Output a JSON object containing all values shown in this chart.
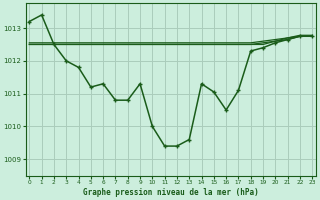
{
  "title": "Graphe pression niveau de la mer (hPa)",
  "background_color": "#cceedd",
  "grid_color": "#aaccbb",
  "line_color": "#1a5c1a",
  "x_ticks": [
    0,
    1,
    2,
    3,
    4,
    5,
    6,
    7,
    8,
    9,
    10,
    11,
    12,
    13,
    14,
    15,
    16,
    17,
    18,
    19,
    20,
    21,
    22,
    23
  ],
  "y_ticks": [
    1009,
    1010,
    1011,
    1012,
    1013
  ],
  "ylim": [
    1008.5,
    1013.75
  ],
  "xlim": [
    -0.3,
    23.3
  ],
  "series_main": [
    1013.2,
    1013.4,
    1012.5,
    1012.0,
    1011.8,
    1011.2,
    1011.3,
    1010.8,
    1010.8,
    1011.3,
    1010.0,
    1009.4,
    1009.4,
    1009.6,
    1011.3,
    1011.05,
    1010.5,
    1011.1,
    1012.3,
    1012.4,
    1012.55,
    1012.65,
    1012.75,
    1012.75
  ],
  "series_flat1": [
    1012.5,
    1012.5,
    1012.5,
    1012.5,
    1012.5,
    1012.5,
    1012.5,
    1012.5,
    1012.5,
    1012.5,
    1012.5,
    1012.5,
    1012.5,
    1012.5,
    1012.5,
    1012.5,
    1012.5,
    1012.5,
    1012.5,
    1012.5,
    1012.6,
    1012.65,
    1012.75,
    1012.75
  ],
  "series_flat2": [
    1012.5,
    1012.5,
    1012.5,
    1012.5,
    1012.5,
    1012.5,
    1012.5,
    1012.5,
    1012.5,
    1012.5,
    1012.5,
    1012.5,
    1012.5,
    1012.5,
    1012.5,
    1012.5,
    1012.5,
    1012.5,
    1012.5,
    1012.55,
    1012.6,
    1012.7,
    1012.75,
    1012.75
  ],
  "series_flat3": [
    1012.55,
    1012.55,
    1012.55,
    1012.55,
    1012.55,
    1012.55,
    1012.55,
    1012.55,
    1012.55,
    1012.55,
    1012.55,
    1012.55,
    1012.55,
    1012.55,
    1012.55,
    1012.55,
    1012.55,
    1012.55,
    1012.55,
    1012.6,
    1012.65,
    1012.7,
    1012.78,
    1012.78
  ]
}
